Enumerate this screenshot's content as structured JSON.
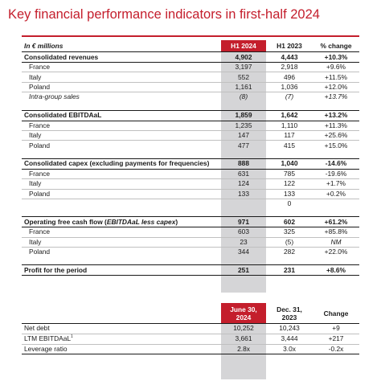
{
  "title": "Key financial performance indicators in first-half 2024",
  "kpi_table": {
    "headers": [
      "In € millions",
      "H1 2024",
      "H1 2023",
      "% change"
    ],
    "sections": [
      {
        "name": "Consolidated revenues",
        "values": [
          "4,902",
          "4,443",
          "+10.3%"
        ],
        "rows": [
          {
            "label": "France",
            "values": [
              "3,197",
              "2,918",
              "+9.6%"
            ]
          },
          {
            "label": "Italy",
            "values": [
              "552",
              "496",
              "+11.5%"
            ]
          },
          {
            "label": "Poland",
            "values": [
              "1,161",
              "1,036",
              "+12.0%"
            ]
          },
          {
            "label": "Intra-group sales",
            "values": [
              "(8)",
              "(7)",
              "+13.7%"
            ],
            "italic": true
          }
        ]
      },
      {
        "name": "Consolidated EBITDAaL",
        "values": [
          "1,859",
          "1,642",
          "+13.2%"
        ],
        "rows": [
          {
            "label": "France",
            "values": [
              "1,235",
              "1,110",
              "+11.3%"
            ]
          },
          {
            "label": "Italy",
            "values": [
              "147",
              "117",
              "+25.6%"
            ]
          },
          {
            "label": "Poland",
            "values": [
              "477",
              "415",
              "+15.0%"
            ]
          }
        ]
      },
      {
        "name": "Consolidated capex (excluding payments for frequencies)",
        "values": [
          "888",
          "1,040",
          "-14.6%"
        ],
        "rows": [
          {
            "label": "France",
            "values": [
              "631",
              "785",
              "-19.6%"
            ]
          },
          {
            "label": "Italy",
            "values": [
              "124",
              "122",
              "+1.7%"
            ]
          },
          {
            "label": "Poland",
            "values": [
              "133",
              "133",
              "+0.2%"
            ]
          },
          {
            "label": "",
            "values": [
              "",
              "0",
              ""
            ]
          }
        ]
      },
      {
        "name_prefix": "Operating free cash flow (",
        "name_italic": "EBITDAaL less capex",
        "name_suffix": ")",
        "values": [
          "971",
          "602",
          "+61.2%"
        ],
        "rows": [
          {
            "label": "France",
            "values": [
              "603",
              "325",
              "+85.8%"
            ]
          },
          {
            "label": "Italy",
            "values": [
              "23",
              "(5)",
              "NM"
            ],
            "italic_change": true
          },
          {
            "label": "Poland",
            "values": [
              "344",
              "282",
              "+22.0%"
            ]
          }
        ]
      }
    ],
    "profit": {
      "name": "Profit for the period",
      "values": [
        "251",
        "231",
        "+8.6%"
      ]
    }
  },
  "balance_table": {
    "headers": [
      "",
      "June 30, 2024",
      "Dec. 31, 2023",
      "Change"
    ],
    "header_lines": [
      [
        "June 30,",
        "2024"
      ],
      [
        "Dec. 31,",
        "2023"
      ]
    ],
    "rows": [
      {
        "label": "Net debt",
        "values": [
          "10,252",
          "10,243",
          "+9"
        ]
      },
      {
        "label": "LTM EBITDAaL",
        "sup": "1",
        "values": [
          "3,661",
          "3,444",
          "+217"
        ]
      },
      {
        "label": "Leverage ratio",
        "values": [
          "2.8x",
          "3.0x",
          "-0.2x"
        ]
      }
    ]
  },
  "colors": {
    "accent": "#c41e2c",
    "highlight_column": "#d5d5d7"
  }
}
